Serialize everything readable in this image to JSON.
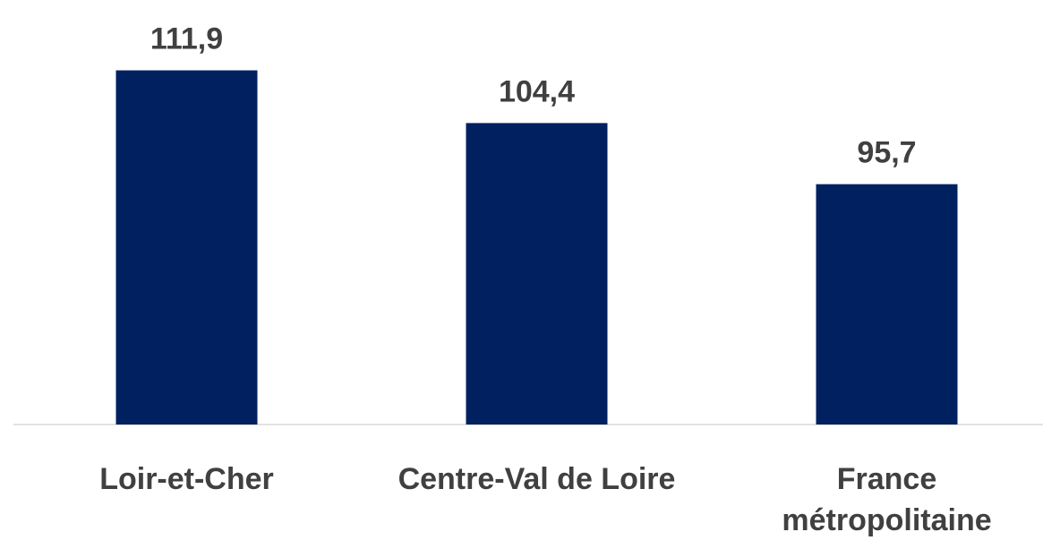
{
  "chart_data": {
    "type": "bar",
    "categories": [
      "Loir-et-Cher",
      "Centre-Val de Loire",
      "France métropolitaine"
    ],
    "values": [
      111.9,
      104.4,
      95.7
    ],
    "value_labels": [
      "111,9",
      "104,4",
      "95,7"
    ],
    "color": "#002060",
    "ylim": [
      61.5,
      120
    ]
  }
}
